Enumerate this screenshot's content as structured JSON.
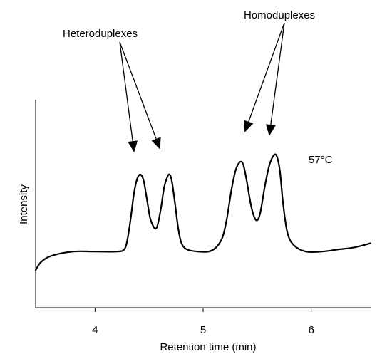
{
  "chart_data": {
    "type": "line",
    "title": "",
    "xlabel": "Retention time (min)",
    "ylabel": "Intensity",
    "xlim": [
      3.45,
      6.55
    ],
    "ylim": [
      0,
      100
    ],
    "x_ticks": [
      "4",
      "5",
      "6"
    ],
    "x_tick_values": [
      4,
      5,
      6
    ],
    "grid": false,
    "line_color": "#000000",
    "series": [
      {
        "values": [
          [
            3.45,
            18
          ],
          [
            3.5,
            22
          ],
          [
            3.6,
            25
          ],
          [
            3.8,
            27
          ],
          [
            4.0,
            27
          ],
          [
            4.2,
            27
          ],
          [
            4.27,
            28
          ],
          [
            4.3,
            33
          ],
          [
            4.33,
            43
          ],
          [
            4.36,
            55
          ],
          [
            4.39,
            62
          ],
          [
            4.42,
            64
          ],
          [
            4.45,
            61
          ],
          [
            4.48,
            52
          ],
          [
            4.51,
            43
          ],
          [
            4.54,
            39
          ],
          [
            4.56,
            38
          ],
          [
            4.58,
            40
          ],
          [
            4.61,
            48
          ],
          [
            4.64,
            58
          ],
          [
            4.67,
            63
          ],
          [
            4.69,
            64
          ],
          [
            4.71,
            61
          ],
          [
            4.74,
            50
          ],
          [
            4.77,
            38
          ],
          [
            4.8,
            31
          ],
          [
            4.85,
            28
          ],
          [
            4.95,
            27
          ],
          [
            5.05,
            27
          ],
          [
            5.12,
            29
          ],
          [
            5.18,
            34
          ],
          [
            5.22,
            43
          ],
          [
            5.26,
            56
          ],
          [
            5.3,
            66
          ],
          [
            5.34,
            70
          ],
          [
            5.37,
            69
          ],
          [
            5.4,
            62
          ],
          [
            5.44,
            50
          ],
          [
            5.47,
            44
          ],
          [
            5.5,
            42
          ],
          [
            5.53,
            46
          ],
          [
            5.57,
            58
          ],
          [
            5.61,
            68
          ],
          [
            5.65,
            73
          ],
          [
            5.68,
            73
          ],
          [
            5.71,
            66
          ],
          [
            5.74,
            50
          ],
          [
            5.78,
            36
          ],
          [
            5.84,
            30
          ],
          [
            5.95,
            27
          ],
          [
            6.1,
            27
          ],
          [
            6.25,
            28
          ],
          [
            6.4,
            29
          ],
          [
            6.55,
            31
          ]
        ]
      }
    ],
    "annotations": [
      {
        "text": "Heteroduplexes",
        "arrow_targets_x": [
          4.4,
          4.58
        ]
      },
      {
        "text": "Homoduplexes",
        "arrow_targets_x": [
          5.37,
          5.62
        ]
      },
      {
        "text": "57°C"
      }
    ]
  }
}
